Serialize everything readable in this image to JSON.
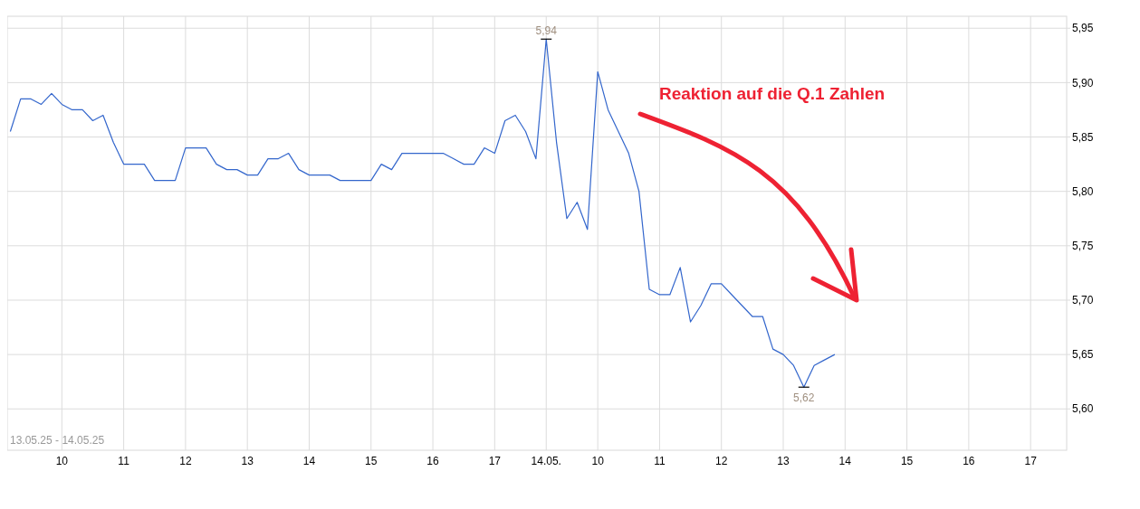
{
  "chart_data": {
    "type": "line",
    "categories": [
      null,
      null,
      null,
      null,
      null,
      "10",
      null,
      null,
      null,
      null,
      null,
      "11",
      null,
      null,
      null,
      null,
      null,
      "12",
      null,
      null,
      null,
      null,
      null,
      "13",
      null,
      null,
      null,
      null,
      null,
      "14",
      null,
      null,
      null,
      null,
      null,
      "15",
      null,
      null,
      null,
      null,
      null,
      "16",
      null,
      null,
      null,
      null,
      null,
      "17",
      null,
      null,
      null,
      null,
      "14.05.",
      null,
      null,
      null,
      null,
      "10",
      null,
      null,
      null,
      null,
      null,
      "11",
      null,
      null,
      null,
      null,
      null,
      "12",
      null,
      null,
      null,
      null,
      null,
      "13",
      null,
      null,
      null,
      null,
      null,
      "14",
      null,
      null,
      null,
      null,
      null,
      "15",
      null,
      null,
      null,
      null,
      null,
      "16",
      null,
      null,
      null,
      null,
      null,
      "17",
      null,
      null,
      null
    ],
    "series": [
      {
        "color": "#3366cc",
        "values": [
          5.855,
          5.885,
          5.885,
          5.88,
          5.89,
          5.88,
          5.875,
          5.875,
          5.865,
          5.87,
          5.845,
          5.825,
          5.825,
          5.825,
          5.81,
          5.81,
          5.81,
          5.84,
          5.84,
          5.84,
          5.825,
          5.82,
          5.82,
          5.815,
          5.815,
          5.83,
          5.83,
          5.835,
          5.82,
          5.815,
          5.815,
          5.815,
          5.81,
          5.81,
          5.81,
          5.81,
          5.825,
          5.82,
          5.835,
          5.835,
          5.835,
          5.835,
          5.835,
          5.83,
          5.825,
          5.825,
          5.84,
          5.835,
          5.865,
          5.87,
          5.855,
          5.83,
          5.94,
          5.845,
          5.775,
          5.79,
          5.765,
          5.91,
          5.875,
          5.855,
          5.835,
          5.8,
          5.71,
          5.705,
          5.705,
          5.73,
          5.68,
          5.695,
          5.715,
          5.715,
          5.705,
          5.695,
          5.685,
          5.685,
          5.655,
          5.65,
          5.64,
          5.62,
          5.64,
          5.645,
          5.65,
          null,
          null,
          null,
          null,
          null,
          null,
          null,
          null,
          null,
          null,
          null,
          null,
          null,
          null,
          null,
          null,
          null,
          null,
          null,
          null,
          null,
          null
        ]
      }
    ],
    "ylim": [
      5.562,
      5.961
    ],
    "yticks": [
      {
        "value": 5.6,
        "label": "5,60"
      },
      {
        "value": 5.65,
        "label": "5,65"
      },
      {
        "value": 5.7,
        "label": "5,70"
      },
      {
        "value": 5.75,
        "label": "5,75"
      },
      {
        "value": 5.8,
        "label": "5,80"
      },
      {
        "value": 5.85,
        "label": "5,85"
      },
      {
        "value": 5.9,
        "label": "5,90"
      },
      {
        "value": 5.95,
        "label": "5,95"
      }
    ],
    "grid": true,
    "annotations": [
      {
        "text": "5,94",
        "x": "14.05.",
        "y": 5.94
      },
      {
        "text": "5,62",
        "y": 5.62
      },
      "13.05.25 - 14.05.25",
      "Reaktion auf die Q.1 Zahlen"
    ]
  }
}
